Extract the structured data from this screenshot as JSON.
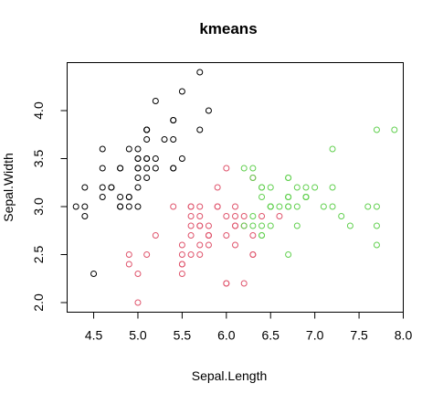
{
  "chart_data": {
    "type": "scatter",
    "title": "kmeans",
    "xlabel": "Sepal.Length",
    "ylabel": "Sepal.Width",
    "xlim": [
      4.2,
      8.0
    ],
    "ylim": [
      1.9,
      4.5
    ],
    "x_ticks": [
      "4.5",
      "5.0",
      "5.5",
      "6.0",
      "6.5",
      "7.0",
      "7.5",
      "8.0"
    ],
    "y_ticks": [
      "2.0",
      "2.5",
      "3.0",
      "3.5",
      "4.0"
    ],
    "grid": false,
    "legend": "none",
    "marker": "open-circle",
    "series": [
      {
        "color": "#000000",
        "x": [
          5.1,
          4.9,
          4.7,
          4.6,
          5.0,
          5.4,
          4.6,
          5.0,
          4.4,
          4.9,
          5.4,
          4.8,
          4.8,
          4.3,
          5.8,
          5.7,
          5.4,
          5.1,
          5.7,
          5.1,
          5.4,
          5.1,
          4.6,
          5.1,
          4.8,
          5.0,
          5.0,
          5.2,
          5.2,
          4.7,
          4.8,
          5.4,
          5.2,
          5.5,
          4.9,
          5.0,
          5.5,
          4.9,
          4.4,
          5.1,
          5.0,
          4.5,
          4.4,
          5.0,
          5.1,
          4.8,
          5.1,
          4.6,
          5.3,
          5.0
        ],
        "y": [
          3.5,
          3.0,
          3.2,
          3.1,
          3.6,
          3.9,
          3.4,
          3.4,
          2.9,
          3.1,
          3.7,
          3.4,
          3.0,
          3.0,
          4.0,
          4.4,
          3.9,
          3.5,
          3.8,
          3.8,
          3.4,
          3.7,
          3.6,
          3.3,
          3.4,
          3.0,
          3.4,
          3.5,
          3.4,
          3.2,
          3.1,
          3.4,
          4.1,
          4.2,
          3.1,
          3.2,
          3.5,
          3.6,
          3.0,
          3.4,
          3.5,
          2.3,
          3.2,
          3.5,
          3.8,
          3.0,
          3.8,
          3.2,
          3.7,
          3.3
        ]
      },
      {
        "color": "#DF536B",
        "x": [
          5.5,
          5.7,
          6.3,
          4.9,
          6.6,
          5.2,
          5.0,
          5.9,
          6.0,
          6.1,
          5.6,
          5.6,
          5.8,
          6.2,
          5.6,
          5.9,
          6.1,
          6.3,
          6.1,
          6.4,
          6.0,
          5.7,
          5.5,
          5.5,
          5.8,
          6.0,
          5.4,
          6.0,
          5.6,
          5.5,
          5.5,
          6.1,
          5.8,
          5.0,
          5.6,
          5.7,
          5.7,
          6.2,
          5.1,
          5.7,
          5.8,
          4.9,
          5.7,
          6.0,
          5.6,
          6.3,
          5.8,
          6.2,
          5.9,
          6.3,
          6.1
        ],
        "y": [
          2.3,
          2.8,
          3.3,
          2.4,
          2.9,
          2.7,
          2.0,
          3.0,
          2.2,
          2.9,
          2.9,
          3.0,
          2.7,
          2.2,
          2.5,
          3.2,
          2.8,
          2.5,
          2.8,
          2.9,
          2.9,
          2.6,
          2.4,
          2.4,
          2.7,
          2.7,
          3.0,
          3.4,
          3.0,
          2.5,
          2.6,
          3.0,
          2.6,
          2.3,
          2.7,
          3.0,
          2.9,
          2.9,
          2.5,
          2.8,
          2.7,
          2.5,
          2.5,
          2.2,
          2.8,
          2.7,
          2.8,
          2.8,
          3.0,
          2.5,
          2.6
        ]
      },
      {
        "color": "#61D04F",
        "x": [
          7.0,
          6.4,
          6.9,
          6.5,
          6.3,
          6.6,
          6.7,
          6.8,
          6.7,
          6.7,
          6.3,
          6.9,
          6.4,
          7.1,
          6.5,
          7.6,
          7.3,
          6.7,
          7.2,
          6.5,
          6.4,
          6.8,
          6.4,
          6.5,
          7.7,
          7.7,
          6.9,
          7.7,
          6.7,
          7.2,
          6.2,
          6.4,
          7.2,
          7.4,
          7.9,
          6.3,
          7.7,
          6.4,
          6.9,
          6.7,
          6.9,
          6.8,
          6.7,
          6.7,
          6.5,
          6.2,
          6.3,
          6.5
        ],
        "y": [
          3.2,
          3.2,
          3.1,
          2.8,
          2.9,
          3.0,
          3.0,
          2.8,
          3.1,
          3.1,
          3.3,
          3.1,
          2.7,
          3.0,
          3.0,
          3.0,
          2.9,
          2.5,
          3.6,
          3.2,
          2.7,
          3.0,
          3.2,
          3.0,
          3.8,
          2.6,
          3.2,
          2.8,
          3.3,
          3.2,
          2.8,
          2.8,
          3.0,
          2.8,
          3.8,
          2.8,
          3.0,
          3.1,
          3.1,
          3.1,
          3.1,
          3.2,
          3.3,
          3.0,
          3.0,
          3.4,
          3.4,
          3.0
        ]
      }
    ]
  }
}
